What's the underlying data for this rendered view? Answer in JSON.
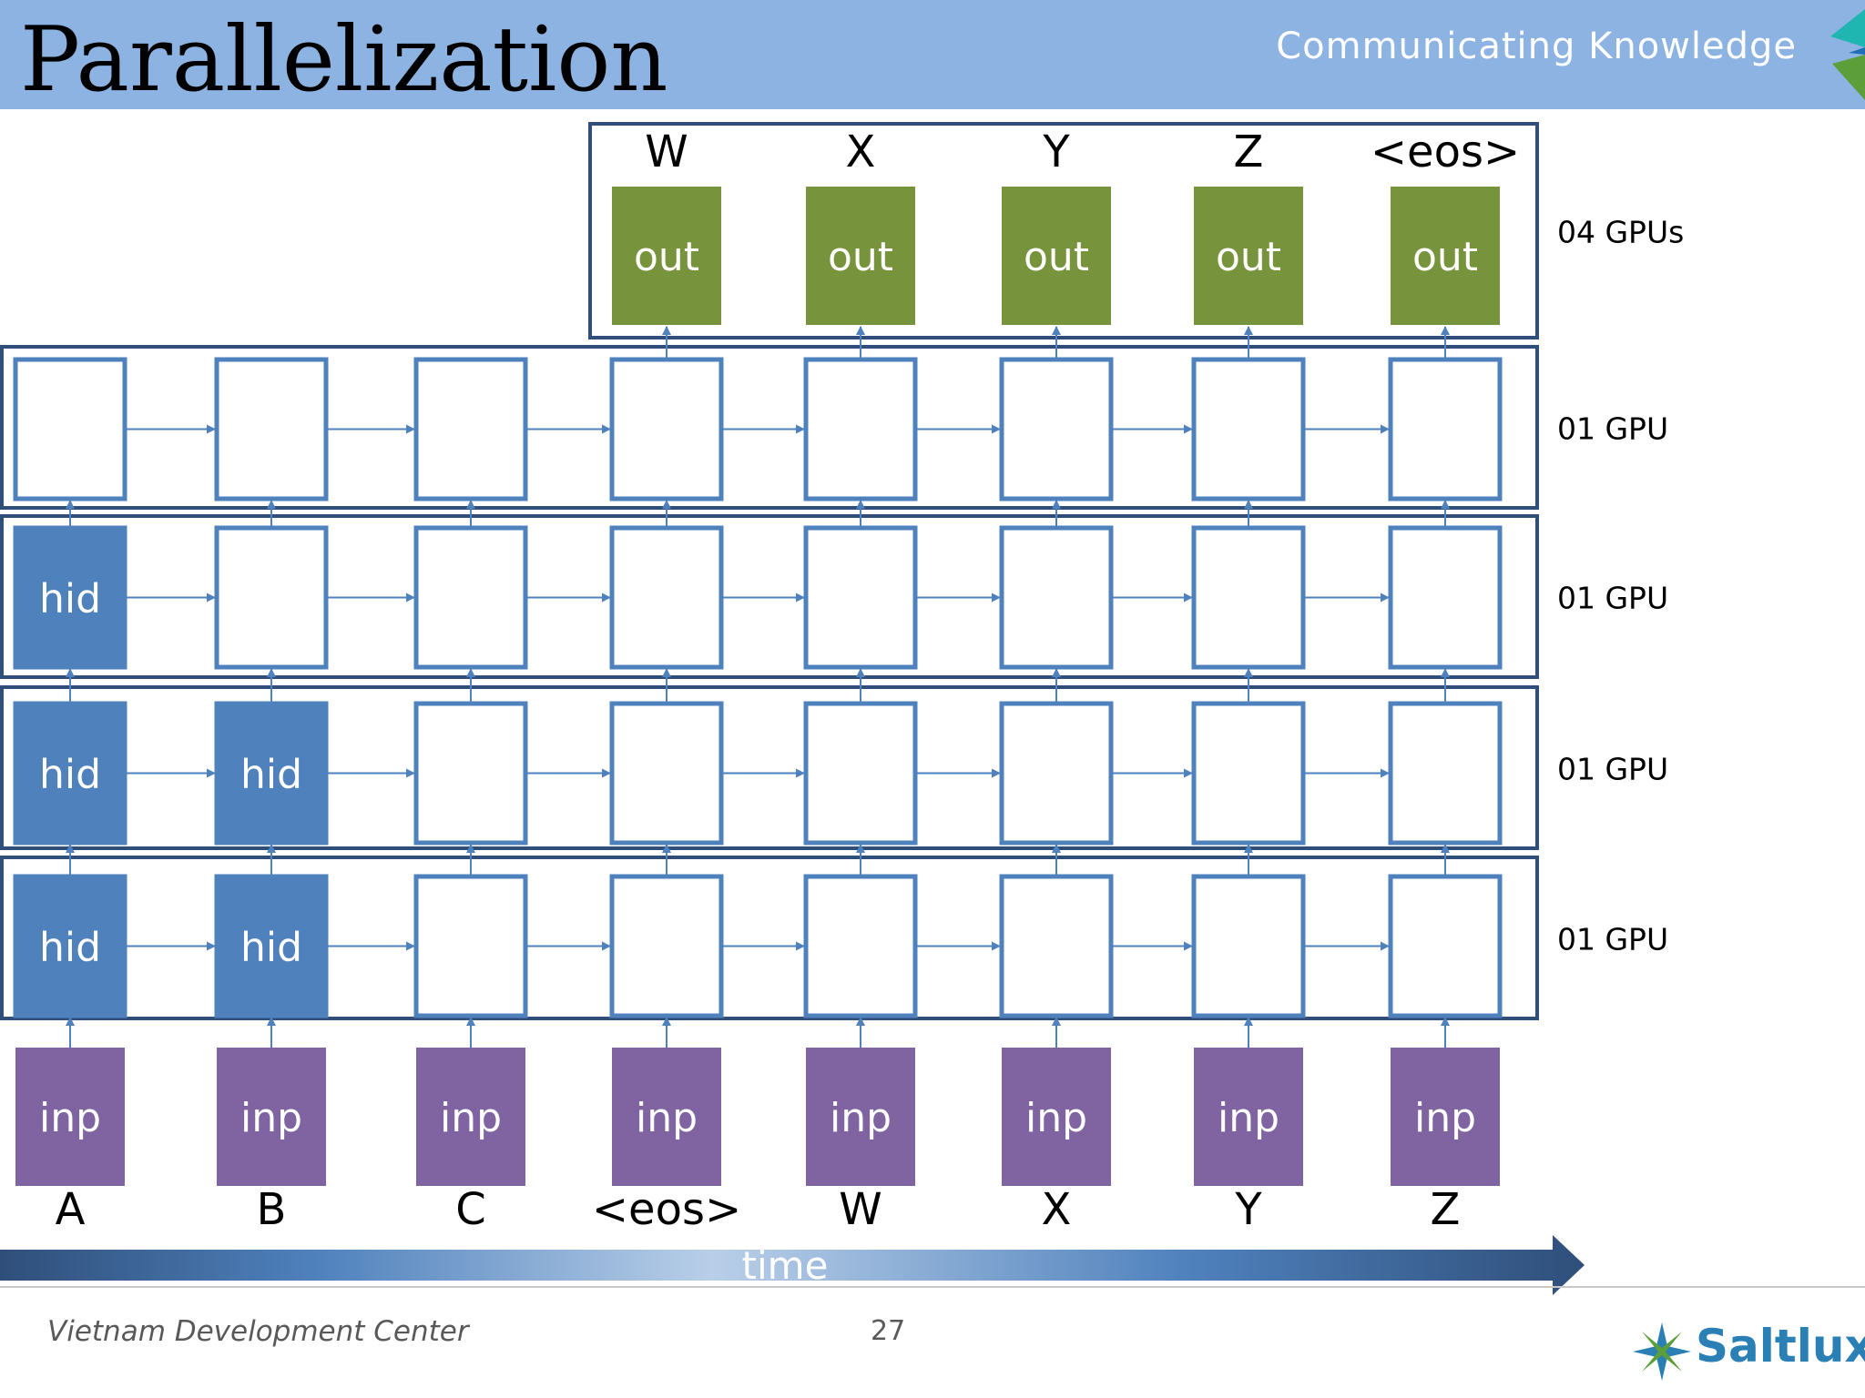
{
  "header": {
    "title": "Parallelization",
    "tagline": "Communicating Knowledge"
  },
  "diagram": {
    "output_labels": [
      "W",
      "X",
      "Y",
      "Z",
      "<eos>"
    ],
    "output_cell_label": "out",
    "input_labels": [
      "A",
      "B",
      "C",
      "<eos>",
      "W",
      "X",
      "Y",
      "Z"
    ],
    "input_cell_label": "inp",
    "hidden_cell_label": "hid",
    "gpu_labels": [
      "04 GPUs",
      "01 GPU",
      "01 GPU",
      "01 GPU",
      "01 GPU"
    ],
    "time_label": "time",
    "active_hidden_cells_per_layer_bottom_to_top": [
      2,
      2,
      1,
      0
    ],
    "colors": {
      "out": "#77933c",
      "inp": "#8064a2",
      "hid": "#4f81bd",
      "cell_border": "#4f81bd",
      "layer_border": "#2f4f7a"
    }
  },
  "footer": {
    "center": "Vietnam Development Center",
    "page": "27",
    "brand": "Saltlux"
  }
}
